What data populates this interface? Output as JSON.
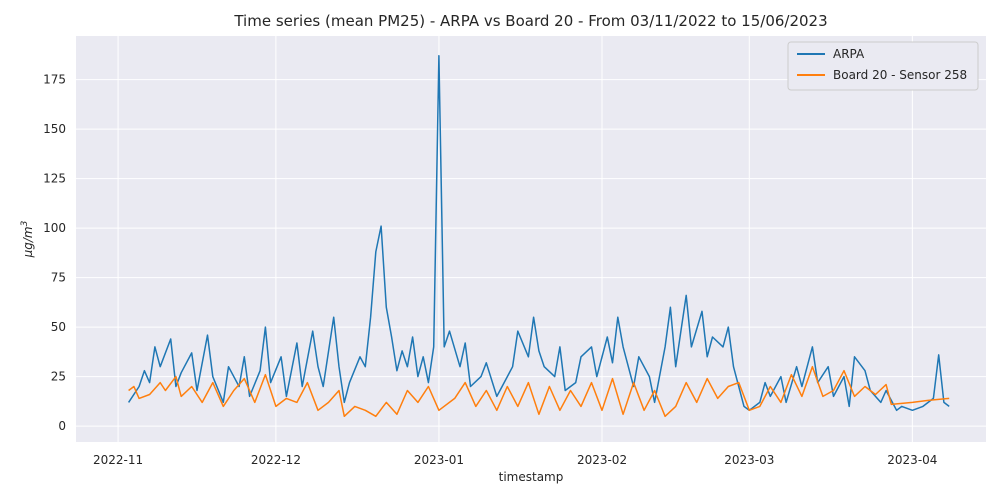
{
  "chart_data": {
    "type": "line",
    "title": "Time series (mean PM25) - ARPA vs Board 20 - From 03/11/2022 to 15/06/2023",
    "xlabel": "timestamp",
    "ylabel": "μg/m",
    "ylabel_superscript": "3",
    "xlim": [
      "2022-10-24",
      "2023-04-15"
    ],
    "ylim": [
      -8,
      197
    ],
    "yticks": [
      0,
      25,
      50,
      75,
      100,
      125,
      150,
      175
    ],
    "xticks": [
      {
        "date": "2022-11-01",
        "label": "2022-11"
      },
      {
        "date": "2022-12-01",
        "label": "2022-12"
      },
      {
        "date": "2023-01-01",
        "label": "2023-01"
      },
      {
        "date": "2023-02-01",
        "label": "2023-02"
      },
      {
        "date": "2023-03-01",
        "label": "2023-03"
      },
      {
        "date": "2023-04-01",
        "label": "2023-04"
      }
    ],
    "grid": true,
    "legend": "top-right",
    "series": [
      {
        "name": "ARPA",
        "color": "#1f77b4",
        "points": [
          [
            "2022-11-03",
            12
          ],
          [
            "2022-11-05",
            20
          ],
          [
            "2022-11-06",
            28
          ],
          [
            "2022-11-07",
            22
          ],
          [
            "2022-11-08",
            40
          ],
          [
            "2022-11-09",
            30
          ],
          [
            "2022-11-11",
            44
          ],
          [
            "2022-11-12",
            20
          ],
          [
            "2022-11-13",
            27
          ],
          [
            "2022-11-15",
            37
          ],
          [
            "2022-11-16",
            18
          ],
          [
            "2022-11-18",
            46
          ],
          [
            "2022-11-19",
            25
          ],
          [
            "2022-11-21",
            12
          ],
          [
            "2022-11-22",
            30
          ],
          [
            "2022-11-24",
            20
          ],
          [
            "2022-11-25",
            35
          ],
          [
            "2022-11-26",
            15
          ],
          [
            "2022-11-28",
            28
          ],
          [
            "2022-11-29",
            50
          ],
          [
            "2022-11-30",
            22
          ],
          [
            "2022-12-02",
            35
          ],
          [
            "2022-12-03",
            15
          ],
          [
            "2022-12-05",
            42
          ],
          [
            "2022-12-06",
            20
          ],
          [
            "2022-12-08",
            48
          ],
          [
            "2022-12-09",
            30
          ],
          [
            "2022-12-10",
            20
          ],
          [
            "2022-12-12",
            55
          ],
          [
            "2022-12-13",
            30
          ],
          [
            "2022-12-14",
            12
          ],
          [
            "2022-12-15",
            22
          ],
          [
            "2022-12-17",
            35
          ],
          [
            "2022-12-18",
            30
          ],
          [
            "2022-12-19",
            55
          ],
          [
            "2022-12-20",
            88
          ],
          [
            "2022-12-21",
            101
          ],
          [
            "2022-12-22",
            60
          ],
          [
            "2022-12-23",
            45
          ],
          [
            "2022-12-24",
            28
          ],
          [
            "2022-12-25",
            38
          ],
          [
            "2022-12-26",
            30
          ],
          [
            "2022-12-27",
            45
          ],
          [
            "2022-12-28",
            25
          ],
          [
            "2022-12-29",
            35
          ],
          [
            "2022-12-30",
            22
          ],
          [
            "2022-12-31",
            40
          ],
          [
            "2023-01-01",
            187
          ],
          [
            "2023-01-02",
            40
          ],
          [
            "2023-01-03",
            48
          ],
          [
            "2023-01-05",
            30
          ],
          [
            "2023-01-06",
            42
          ],
          [
            "2023-01-07",
            20
          ],
          [
            "2023-01-09",
            25
          ],
          [
            "2023-01-10",
            32
          ],
          [
            "2023-01-12",
            15
          ],
          [
            "2023-01-13",
            20
          ],
          [
            "2023-01-15",
            30
          ],
          [
            "2023-01-16",
            48
          ],
          [
            "2023-01-18",
            35
          ],
          [
            "2023-01-19",
            55
          ],
          [
            "2023-01-20",
            38
          ],
          [
            "2023-01-21",
            30
          ],
          [
            "2023-01-23",
            25
          ],
          [
            "2023-01-24",
            40
          ],
          [
            "2023-01-25",
            18
          ],
          [
            "2023-01-27",
            22
          ],
          [
            "2023-01-28",
            35
          ],
          [
            "2023-01-30",
            40
          ],
          [
            "2023-01-31",
            25
          ],
          [
            "2023-02-02",
            45
          ],
          [
            "2023-02-03",
            32
          ],
          [
            "2023-02-04",
            55
          ],
          [
            "2023-02-05",
            40
          ],
          [
            "2023-02-07",
            20
          ],
          [
            "2023-02-08",
            35
          ],
          [
            "2023-02-10",
            25
          ],
          [
            "2023-02-11",
            12
          ],
          [
            "2023-02-13",
            40
          ],
          [
            "2023-02-14",
            60
          ],
          [
            "2023-02-15",
            30
          ],
          [
            "2023-02-16",
            48
          ],
          [
            "2023-02-17",
            66
          ],
          [
            "2023-02-18",
            40
          ],
          [
            "2023-02-20",
            58
          ],
          [
            "2023-02-21",
            35
          ],
          [
            "2023-02-22",
            45
          ],
          [
            "2023-02-24",
            40
          ],
          [
            "2023-02-25",
            50
          ],
          [
            "2023-02-26",
            30
          ],
          [
            "2023-02-28",
            10
          ],
          [
            "2023-03-01",
            8
          ],
          [
            "2023-03-03",
            12
          ],
          [
            "2023-03-04",
            22
          ],
          [
            "2023-03-05",
            15
          ],
          [
            "2023-03-07",
            25
          ],
          [
            "2023-03-08",
            12
          ],
          [
            "2023-03-10",
            30
          ],
          [
            "2023-03-11",
            20
          ],
          [
            "2023-03-13",
            40
          ],
          [
            "2023-03-14",
            22
          ],
          [
            "2023-03-16",
            30
          ],
          [
            "2023-03-17",
            15
          ],
          [
            "2023-03-19",
            25
          ],
          [
            "2023-03-20",
            10
          ],
          [
            "2023-03-21",
            35
          ],
          [
            "2023-03-23",
            28
          ],
          [
            "2023-03-24",
            18
          ],
          [
            "2023-03-26",
            12
          ],
          [
            "2023-03-27",
            18
          ],
          [
            "2023-03-29",
            8
          ],
          [
            "2023-03-30",
            10
          ],
          [
            "2023-04-01",
            8
          ],
          [
            "2023-04-03",
            10
          ],
          [
            "2023-04-05",
            14
          ],
          [
            "2023-04-06",
            36
          ],
          [
            "2023-04-07",
            12
          ],
          [
            "2023-04-08",
            10
          ]
        ]
      },
      {
        "name": "Board 20 - Sensor 258",
        "color": "#ff7f0e",
        "points": [
          [
            "2022-11-03",
            18
          ],
          [
            "2022-11-04",
            20
          ],
          [
            "2022-11-05",
            14
          ],
          [
            "2022-11-07",
            16
          ],
          [
            "2022-11-09",
            22
          ],
          [
            "2022-11-10",
            18
          ],
          [
            "2022-11-12",
            25
          ],
          [
            "2022-11-13",
            15
          ],
          [
            "2022-11-15",
            20
          ],
          [
            "2022-11-17",
            12
          ],
          [
            "2022-11-19",
            22
          ],
          [
            "2022-11-21",
            10
          ],
          [
            "2022-11-23",
            18
          ],
          [
            "2022-11-25",
            24
          ],
          [
            "2022-11-27",
            12
          ],
          [
            "2022-11-29",
            26
          ],
          [
            "2022-12-01",
            10
          ],
          [
            "2022-12-03",
            14
          ],
          [
            "2022-12-05",
            12
          ],
          [
            "2022-12-07",
            22
          ],
          [
            "2022-12-09",
            8
          ],
          [
            "2022-12-11",
            12
          ],
          [
            "2022-12-13",
            18
          ],
          [
            "2022-12-14",
            5
          ],
          [
            "2022-12-16",
            10
          ],
          [
            "2022-12-18",
            8
          ],
          [
            "2022-12-20",
            5
          ],
          [
            "2022-12-22",
            12
          ],
          [
            "2022-12-24",
            6
          ],
          [
            "2022-12-26",
            18
          ],
          [
            "2022-12-28",
            12
          ],
          [
            "2022-12-30",
            20
          ],
          [
            "2023-01-01",
            8
          ],
          [
            "2023-01-04",
            14
          ],
          [
            "2023-01-06",
            22
          ],
          [
            "2023-01-08",
            10
          ],
          [
            "2023-01-10",
            18
          ],
          [
            "2023-01-12",
            8
          ],
          [
            "2023-01-14",
            20
          ],
          [
            "2023-01-16",
            10
          ],
          [
            "2023-01-18",
            22
          ],
          [
            "2023-01-20",
            6
          ],
          [
            "2023-01-22",
            20
          ],
          [
            "2023-01-24",
            8
          ],
          [
            "2023-01-26",
            18
          ],
          [
            "2023-01-28",
            10
          ],
          [
            "2023-01-30",
            22
          ],
          [
            "2023-02-01",
            8
          ],
          [
            "2023-02-03",
            24
          ],
          [
            "2023-02-05",
            6
          ],
          [
            "2023-02-07",
            22
          ],
          [
            "2023-02-09",
            8
          ],
          [
            "2023-02-11",
            18
          ],
          [
            "2023-02-13",
            5
          ],
          [
            "2023-02-15",
            10
          ],
          [
            "2023-02-17",
            22
          ],
          [
            "2023-02-19",
            12
          ],
          [
            "2023-02-21",
            24
          ],
          [
            "2023-02-23",
            14
          ],
          [
            "2023-02-25",
            20
          ],
          [
            "2023-02-27",
            22
          ],
          [
            "2023-03-01",
            8
          ],
          [
            "2023-03-03",
            10
          ],
          [
            "2023-03-05",
            20
          ],
          [
            "2023-03-07",
            12
          ],
          [
            "2023-03-09",
            26
          ],
          [
            "2023-03-11",
            15
          ],
          [
            "2023-03-13",
            30
          ],
          [
            "2023-03-15",
            15
          ],
          [
            "2023-03-17",
            18
          ],
          [
            "2023-03-19",
            28
          ],
          [
            "2023-03-21",
            15
          ],
          [
            "2023-03-23",
            20
          ],
          [
            "2023-03-25",
            16
          ],
          [
            "2023-03-27",
            21
          ],
          [
            "2023-03-28",
            11
          ],
          [
            "2023-04-01",
            12
          ],
          [
            "2023-04-04",
            13
          ],
          [
            "2023-04-08",
            14
          ]
        ]
      }
    ]
  }
}
